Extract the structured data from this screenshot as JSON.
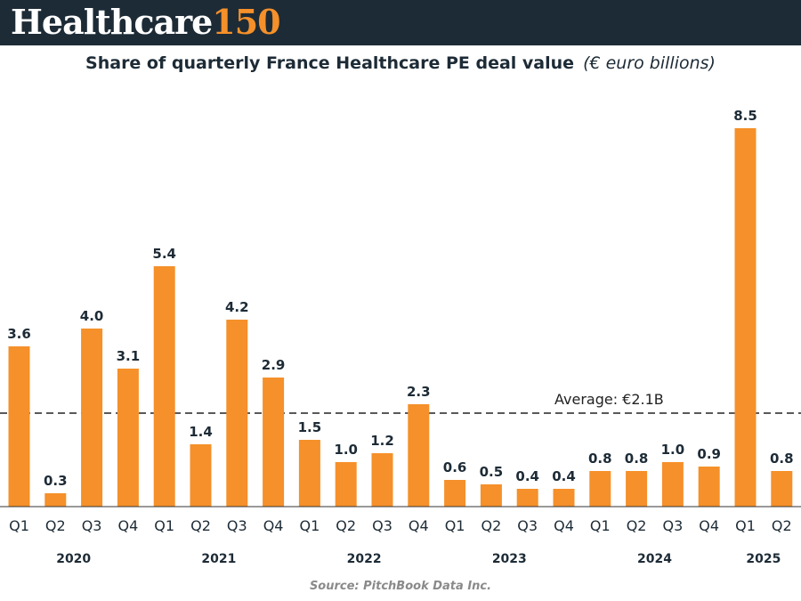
{
  "brand": {
    "name": "Healthcare",
    "number": "150"
  },
  "title": "Share of quarterly France Healthcare PE deal value",
  "subtitle": "(€ euro billions)",
  "source": "Source: PitchBook Data Inc.",
  "colors": {
    "bar": "#f5902a",
    "banner": "#1d2b36",
    "text": "#1d2b36"
  },
  "chart_data": {
    "type": "bar",
    "categories": [
      "Q1",
      "Q2",
      "Q3",
      "Q4",
      "Q1",
      "Q2",
      "Q3",
      "Q4",
      "Q1",
      "Q2",
      "Q3",
      "Q4",
      "Q1",
      "Q2",
      "Q3",
      "Q4",
      "Q1",
      "Q2",
      "Q3",
      "Q4",
      "Q1",
      "Q2"
    ],
    "values": [
      3.6,
      0.3,
      4.0,
      3.1,
      5.4,
      1.4,
      4.2,
      2.9,
      1.5,
      1.0,
      1.2,
      2.3,
      0.6,
      0.5,
      0.4,
      0.4,
      0.8,
      0.8,
      1.0,
      0.9,
      8.5,
      0.8
    ],
    "value_labels": [
      "3.6",
      "0.3",
      "4.0",
      "3.1",
      "5.4",
      "1.4",
      "4.2",
      "2.9",
      "1.5",
      "1.0",
      "1.2",
      "2.3",
      "0.6",
      "0.5",
      "0.4",
      "0.4",
      "0.8",
      "0.8",
      "1.0",
      "0.9",
      "8.5",
      "0.8"
    ],
    "year_groups": [
      {
        "label": "2020",
        "start": 0,
        "count": 4
      },
      {
        "label": "2021",
        "start": 4,
        "count": 4
      },
      {
        "label": "2022",
        "start": 8,
        "count": 4
      },
      {
        "label": "2023",
        "start": 12,
        "count": 4
      },
      {
        "label": "2024",
        "start": 16,
        "count": 4
      },
      {
        "label": "2025",
        "start": 20,
        "count": 2
      }
    ],
    "average": {
      "value": 2.1,
      "label": "Average: €2.1B"
    },
    "ylim": [
      0,
      8.5
    ],
    "grid": false,
    "legend": "none"
  }
}
